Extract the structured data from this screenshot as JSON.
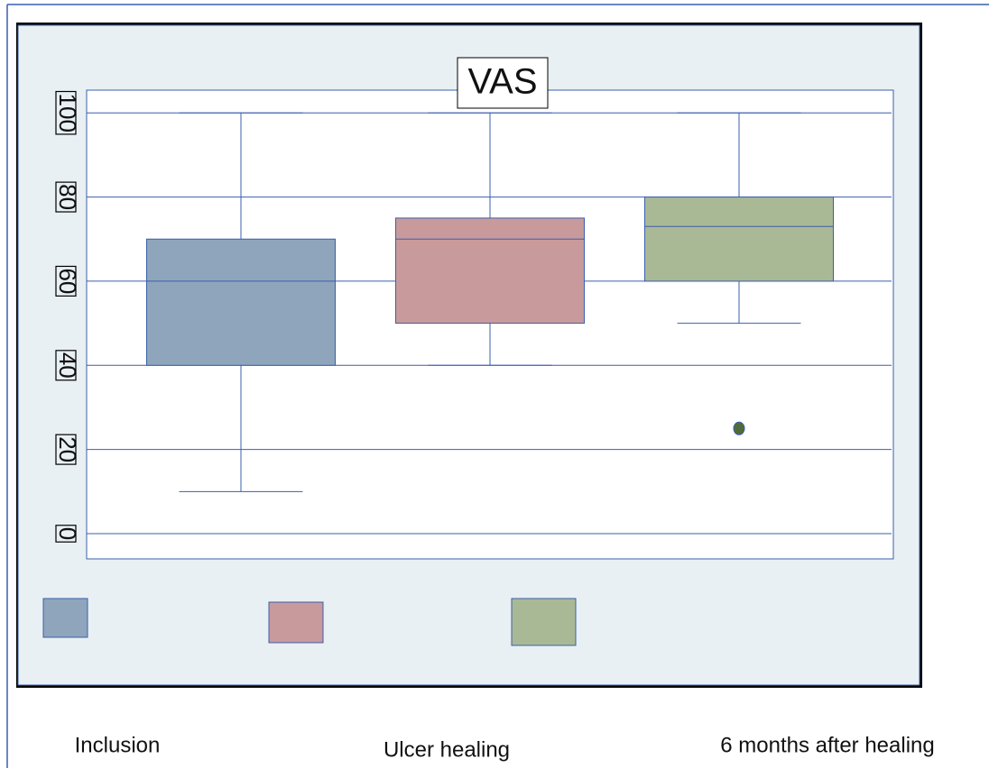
{
  "chart_data": {
    "type": "box",
    "title": "VAS",
    "categories": [
      "Inclusion",
      "Ulcer healing",
      "6 months after healing"
    ],
    "boxes": [
      {
        "min": 10,
        "q1": 40,
        "median": 60,
        "q3": 70,
        "max": 100,
        "color": "#8fa5bb"
      },
      {
        "min": 40,
        "q1": 50,
        "median": 70,
        "q3": 75,
        "max": 100,
        "color": "#c89a9c"
      },
      {
        "min": 50,
        "q1": 60,
        "median": 73,
        "q3": 80,
        "max": 100,
        "color": "#aab995",
        "outliers": [
          25
        ]
      }
    ],
    "ylim": [
      0,
      105.4
    ],
    "yticks": [
      0,
      20,
      40,
      60,
      80,
      100
    ],
    "grid": true
  }
}
